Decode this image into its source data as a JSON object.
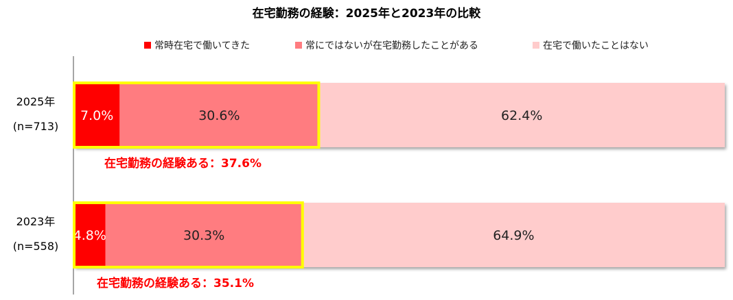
{
  "chart_data": {
    "type": "bar",
    "orientation": "horizontal",
    "stacked": true,
    "title": "在宅勤務の経験：2025年と2023年の比較",
    "categories": [
      {
        "label": "2025年",
        "sublabel": "(n=713)"
      },
      {
        "label": "2023年",
        "sublabel": "(n=558)"
      }
    ],
    "series": [
      {
        "name": "常時在宅で働いてきた",
        "color": "#FF0000",
        "values": [
          7.0,
          4.8
        ],
        "labels": [
          "7.0%",
          "4.8%"
        ],
        "label_color": "#FFFFFF"
      },
      {
        "name": "常にではないが在宅勤務したことがある",
        "color": "#FF7C80",
        "values": [
          30.6,
          30.3
        ],
        "labels": [
          "30.6%",
          "30.3%"
        ],
        "label_color": "#222222"
      },
      {
        "name": "在宅で働いたことはない",
        "color": "#FFCCCC",
        "values": [
          62.4,
          64.9
        ],
        "labels": [
          "62.4%",
          "64.9%"
        ],
        "label_color": "#222222"
      }
    ],
    "annotations": [
      "在宅勤務の経験ある：37.6%",
      "在宅勤務の経験ある：35.1%"
    ],
    "highlight_color": "#FFFF00",
    "annotation_color": "#FF0000",
    "xlim": [
      0,
      100
    ],
    "legend": "top",
    "grid": false
  }
}
